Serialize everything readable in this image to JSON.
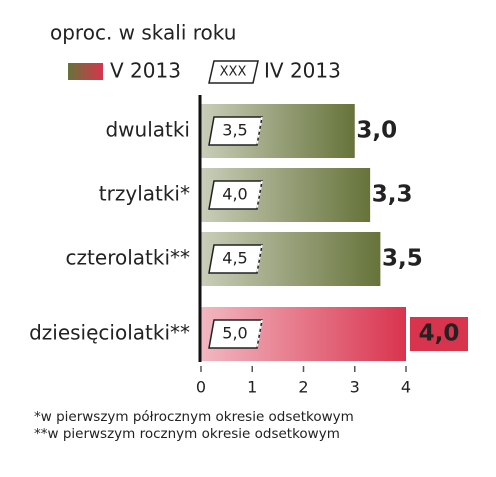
{
  "chart_data": {
    "type": "bar",
    "orientation": "horizontal",
    "title": "oproc. w skali roku",
    "categories": [
      "dwulatki",
      "trzylatki*",
      "czterolatki**",
      "dziesięciolatki**"
    ],
    "series": [
      {
        "name": "V 2013",
        "colors": [
          "#66733a",
          "#66733a",
          "#66733a",
          "#d9344e"
        ],
        "values": [
          3.0,
          3.3,
          3.5,
          4.0
        ],
        "value_labels": [
          "3,0",
          "3,3",
          "3,5",
          "4,0"
        ]
      },
      {
        "name": "IV 2013",
        "marker_label": "XXX",
        "values": [
          3.5,
          4.0,
          4.5,
          5.0
        ],
        "value_labels": [
          "3,5",
          "4,0",
          "4,5",
          "5,0"
        ]
      }
    ],
    "xlim": [
      0,
      4
    ],
    "xticks": [
      0,
      1,
      2,
      3,
      4
    ],
    "footnotes": [
      "*w pierwszym półrocznym okresie odsetkowym",
      "**w pierwszym rocznym okresie odsetkowym"
    ]
  }
}
